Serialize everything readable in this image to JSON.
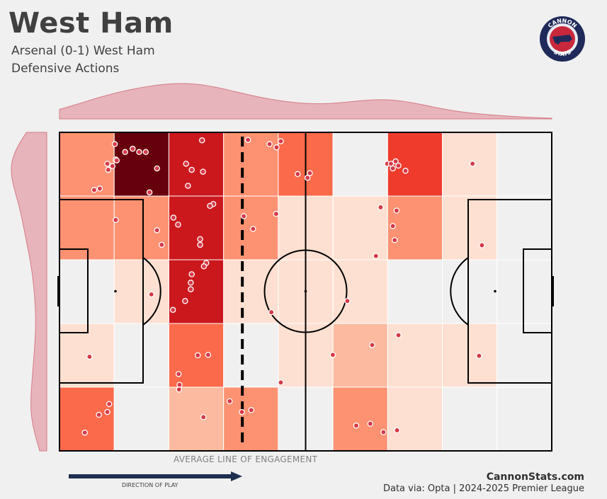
{
  "header": {
    "title": "West Ham",
    "match": "Arsenal (0-1) West Ham",
    "metric": "Defensive Actions"
  },
  "logo": {
    "top_text": "CANNON",
    "bottom_text": "STATS"
  },
  "footer": {
    "engagement_label": "AVERAGE LINE OF ENGAGEMENT",
    "direction_label": "DIRECTION OF PLAY",
    "site": "CannonStats.com",
    "source": "Data via: Opta | 2024-2025 Premier League"
  },
  "colors": {
    "background": "#f0f0f0",
    "dot": "#d63a48",
    "arrow": "#1e3050",
    "kde": "#e8b4bb",
    "kde_line": "#d57a85",
    "logo_ring": "#1f2a5a",
    "logo_inner": "#c8283c"
  },
  "chart_data": {
    "type": "heatmap",
    "pitch": {
      "length": 105,
      "width": 68,
      "bins_x": 9,
      "bins_y": 5
    },
    "bin_counts": [
      [
        3,
        10,
        7,
        4,
        5,
        0,
        6,
        1,
        0
      ],
      [
        3,
        4,
        7,
        3,
        1,
        1,
        4,
        1,
        0
      ],
      [
        0,
        1,
        8,
        1,
        1,
        1,
        0,
        0,
        0
      ],
      [
        1,
        0,
        5,
        0,
        1,
        2,
        1,
        1,
        0
      ],
      [
        5,
        0,
        2,
        4,
        0,
        3,
        1,
        0,
        0
      ]
    ],
    "color_scale": [
      "#f0f0f0",
      "#fee0d2",
      "#fcbba1",
      "#fc9272",
      "#fb6a4a",
      "#ef3b2c",
      "#cb181d",
      "#a50f15",
      "#67000d"
    ],
    "average_line_of_engagement_x": 39.0,
    "points": [
      [
        12.0,
        62.2
      ],
      [
        11.3,
        60.8
      ],
      [
        12.2,
        62.0
      ],
      [
        15.6,
        64.5
      ],
      [
        11.8,
        65.5
      ],
      [
        10.2,
        61.3
      ],
      [
        10.4,
        60.0
      ],
      [
        18.4,
        63.8
      ],
      [
        20.8,
        60.3
      ],
      [
        14.0,
        63.8
      ],
      [
        17.0,
        63.8
      ],
      [
        19.2,
        55.2
      ],
      [
        30.4,
        66.3
      ],
      [
        27.0,
        61.3
      ],
      [
        28.2,
        60.0
      ],
      [
        30.6,
        59.6
      ],
      [
        27.4,
        56.6
      ],
      [
        32.8,
        52.7
      ],
      [
        40.2,
        66.4
      ],
      [
        44.8,
        65.5
      ],
      [
        46.3,
        64.8
      ],
      [
        47.2,
        66.1
      ],
      [
        50.8,
        59.1
      ],
      [
        53.4,
        59.3
      ],
      [
        69.9,
        61.3
      ],
      [
        71.7,
        61.8
      ],
      [
        70.7,
        61.3
      ],
      [
        72.3,
        60.9
      ],
      [
        71.1,
        60.3
      ],
      [
        73.8,
        59.8
      ],
      [
        88.1,
        61.3
      ],
      [
        7.4,
        55.7
      ],
      [
        8.6,
        56.0
      ],
      [
        12.0,
        49.3
      ],
      [
        20.8,
        47.1
      ],
      [
        21.8,
        44.0
      ],
      [
        24.3,
        49.8
      ],
      [
        25.3,
        48.3
      ],
      [
        32.1,
        52.3
      ],
      [
        30.0,
        44.0
      ],
      [
        30.0,
        45.2
      ],
      [
        31.3,
        40.1
      ],
      [
        39.3,
        50.1
      ],
      [
        41.3,
        47.4
      ],
      [
        46.2,
        50.6
      ],
      [
        52.9,
        58.3
      ],
      [
        68.5,
        52.0
      ],
      [
        71.9,
        51.3
      ],
      [
        71.1,
        48.0
      ],
      [
        71.5,
        45.0
      ],
      [
        67.5,
        41.6
      ],
      [
        90.1,
        43.9
      ],
      [
        30.8,
        39.4
      ],
      [
        28.2,
        37.7
      ],
      [
        28.0,
        35.9
      ],
      [
        28.0,
        34.5
      ],
      [
        26.8,
        32.0
      ],
      [
        19.6,
        33.4
      ],
      [
        24.2,
        30.1
      ],
      [
        45.2,
        29.6
      ],
      [
        61.4,
        32.0
      ],
      [
        6.4,
        20.1
      ],
      [
        29.5,
        20.4
      ],
      [
        31.7,
        20.5
      ],
      [
        25.4,
        16.4
      ],
      [
        25.6,
        14.1
      ],
      [
        58.3,
        20.5
      ],
      [
        66.7,
        22.6
      ],
      [
        72.3,
        24.7
      ],
      [
        89.5,
        20.3
      ],
      [
        47.2,
        14.6
      ],
      [
        25.5,
        13.1
      ],
      [
        10.6,
        10.0
      ],
      [
        10.2,
        8.3
      ],
      [
        8.4,
        7.7
      ],
      [
        5.4,
        3.9
      ],
      [
        30.7,
        7.2
      ],
      [
        36.3,
        10.6
      ],
      [
        38.9,
        8.3
      ],
      [
        40.9,
        8.7
      ],
      [
        63.3,
        5.4
      ],
      [
        66.3,
        5.8
      ],
      [
        69.1,
        4.0
      ],
      [
        72.0,
        4.4
      ]
    ]
  }
}
